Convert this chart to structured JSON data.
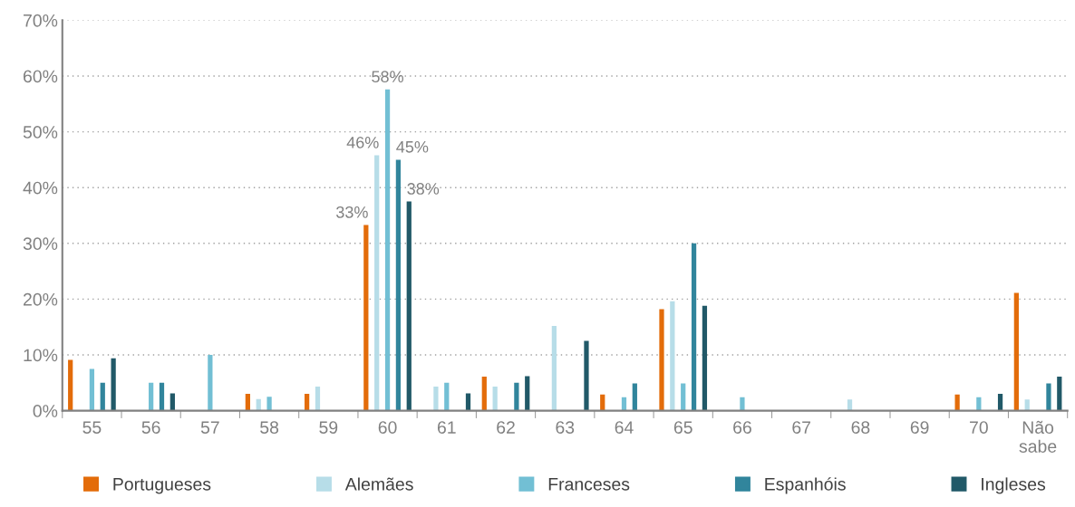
{
  "chart_data": {
    "type": "bar",
    "categories": [
      "55",
      "56",
      "57",
      "58",
      "59",
      "60",
      "61",
      "62",
      "63",
      "64",
      "65",
      "66",
      "67",
      "68",
      "69",
      "70",
      "Não\nsabe"
    ],
    "series": [
      {
        "name": "Portugueses",
        "color": "#e36c0a",
        "values": [
          9.1,
          0,
          0,
          3,
          3,
          33.3,
          0,
          6.1,
          0,
          2.9,
          18.2,
          0,
          0,
          0,
          0,
          2.9,
          21.1
        ],
        "value_labels": [
          null,
          null,
          null,
          null,
          null,
          "33%",
          null,
          null,
          null,
          null,
          null,
          null,
          null,
          null,
          null,
          null,
          null
        ]
      },
      {
        "name": "Alemães",
        "color": "#b7dde8",
        "values": [
          0,
          0,
          0,
          2.1,
          4.3,
          45.8,
          4.3,
          4.3,
          15.2,
          0,
          19.6,
          0,
          0,
          2,
          0,
          0,
          2
        ],
        "value_labels": [
          null,
          null,
          null,
          null,
          null,
          "46%",
          null,
          null,
          null,
          null,
          null,
          null,
          null,
          null,
          null,
          null,
          null
        ]
      },
      {
        "name": "Franceses",
        "color": "#72bfd4",
        "values": [
          7.5,
          5,
          10,
          2.5,
          0,
          57.6,
          5,
          0,
          0,
          2.4,
          4.9,
          2.4,
          0,
          0,
          0,
          2.4,
          0
        ],
        "value_labels": [
          null,
          null,
          null,
          null,
          null,
          "58%",
          null,
          null,
          null,
          null,
          null,
          null,
          null,
          null,
          null,
          null,
          null
        ]
      },
      {
        "name": "Espanhóis",
        "color": "#31859c",
        "values": [
          5,
          5,
          0,
          0,
          0,
          45,
          0,
          5,
          0,
          4.9,
          30,
          0,
          0,
          0,
          0,
          0,
          4.9
        ],
        "value_labels": [
          null,
          null,
          null,
          null,
          null,
          "45%",
          null,
          null,
          null,
          null,
          null,
          null,
          null,
          null,
          null,
          null,
          null
        ]
      },
      {
        "name": "Ingleses",
        "color": "#215968",
        "values": [
          9.4,
          3.1,
          0,
          0,
          0,
          37.5,
          3.1,
          6.2,
          12.5,
          0,
          18.8,
          0,
          0,
          0,
          0,
          3,
          6.1
        ],
        "value_labels": [
          null,
          null,
          null,
          null,
          null,
          "38%",
          null,
          null,
          null,
          null,
          null,
          null,
          null,
          null,
          null,
          null,
          null
        ]
      }
    ],
    "ylim": [
      0,
      70
    ],
    "yticks": [
      {
        "value": 0,
        "label": "0%"
      },
      {
        "value": 10,
        "label": "10%"
      },
      {
        "value": 20,
        "label": "20%"
      },
      {
        "value": 30,
        "label": "30%"
      },
      {
        "value": 40,
        "label": "40%"
      },
      {
        "value": 50,
        "label": "50%"
      },
      {
        "value": 60,
        "label": "60%"
      },
      {
        "value": 70,
        "label": "70%"
      }
    ],
    "grid": "y",
    "legend": "bottom"
  }
}
